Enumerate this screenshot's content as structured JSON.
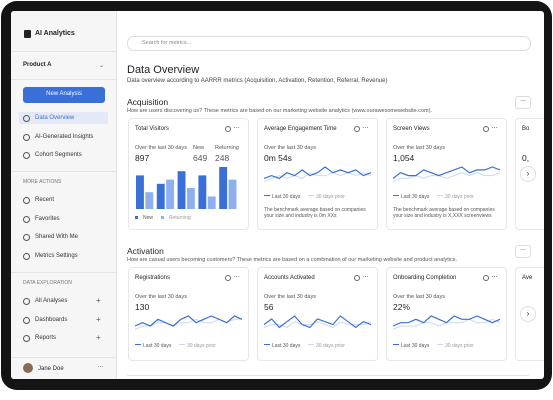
{
  "sidebar": {
    "brand": "AI Analytics",
    "product": "Product A",
    "new_button": "New Analysis",
    "nav": [
      "Data Overview",
      "AI-Generated Insights",
      "Cohort Segments"
    ],
    "sections": [
      {
        "title": "MORE ACTIONS",
        "items": [
          "Recent",
          "Favorites",
          "Shared With Me",
          "Metrics Settings"
        ]
      },
      {
        "title": "DATA EXPLORATION",
        "items": [
          "All Analyses",
          "Dashboards",
          "Reports"
        ]
      }
    ],
    "user": "Jane Doe"
  },
  "main": {
    "search_placeholder": "Search for metrics...",
    "title": "Data Overview",
    "subtitle": "Data overview according to AARRR metrics (Acquisition, Activation, Retention, Referral, Revenue)",
    "sections": [
      {
        "title": "Acquisition",
        "description": "How are users discovering us? These metrics are based on our marketing website analytics (www.ourawesomewebsite.com).",
        "cards": [
          {
            "title": "Total Visitors",
            "period": "Over the last 30 days",
            "stats": [
              {
                "value": "897"
              },
              {
                "label": "New",
                "value": "649"
              },
              {
                "label": "Returning",
                "value": "248"
              }
            ],
            "chart": {
              "type": "bar",
              "series": [
                {
                  "name": "New",
                  "color": "#3b6fd8",
                  "values": [
                    8,
                    6,
                    9,
                    8,
                    10
                  ]
                },
                {
                  "name": "Returning",
                  "color": "#8fb0ee",
                  "values": [
                    4,
                    7,
                    5,
                    3,
                    7
                  ]
                }
              ]
            }
          },
          {
            "title": "Average Engagement Time",
            "period": "Over the last 30 days",
            "stats": [
              {
                "value": "0m 54s"
              }
            ],
            "chart": {
              "type": "line",
              "series": [
                {
                  "name": "Last 30 days",
                  "color": "#3b6fd8",
                  "values": [
                    3,
                    4,
                    3,
                    5,
                    4,
                    6,
                    4,
                    5,
                    7,
                    5,
                    6,
                    5,
                    6,
                    4,
                    5
                  ]
                },
                {
                  "name": "30 days prior",
                  "color": "#c9d8f6",
                  "values": [
                    2,
                    3,
                    4,
                    3,
                    4,
                    3,
                    5,
                    4,
                    4,
                    5,
                    4,
                    5,
                    4,
                    5,
                    4
                  ]
                }
              ]
            },
            "note": "The benchmark average based on companies your size and industry is 0m XXs"
          },
          {
            "title": "Screen Views",
            "period": "Over the last 30 days",
            "stats": [
              {
                "value": "1,054"
              }
            ],
            "chart": {
              "type": "line",
              "series": [
                {
                  "name": "Last 30 days",
                  "color": "#3b6fd8",
                  "values": [
                    3,
                    5,
                    4,
                    4,
                    6,
                    5,
                    4,
                    5,
                    6,
                    7,
                    5,
                    6,
                    6,
                    7,
                    6
                  ]
                },
                {
                  "name": "30 days prior",
                  "color": "#c9d8f6",
                  "values": [
                    2,
                    3,
                    3,
                    4,
                    3,
                    4,
                    4,
                    3,
                    4,
                    5,
                    4,
                    5,
                    4,
                    4,
                    5
                  ]
                }
              ]
            },
            "note": "The benchmark average based on companies your size and industry is X,XXX screenviews"
          },
          {
            "title": "Bo",
            "stats": [
              {
                "value": "0,"
              }
            ]
          }
        ]
      },
      {
        "title": "Activation",
        "description": "How are casual users becoming customers? These metrics are based on a combination of our marketing website and product analytics.",
        "cards": [
          {
            "title": "Registrations",
            "period": "Over the last 30 days",
            "stats": [
              {
                "value": "130"
              }
            ],
            "chart": {
              "type": "line",
              "series": [
                {
                  "name": "Last 30 days",
                  "color": "#3b6fd8",
                  "values": [
                    3,
                    4,
                    3,
                    5,
                    4,
                    3,
                    5,
                    6,
                    4,
                    5,
                    6,
                    5,
                    4,
                    6,
                    5
                  ]
                },
                {
                  "name": "30 days prior",
                  "color": "#c9d8f6",
                  "values": [
                    2,
                    3,
                    3,
                    4,
                    4,
                    3,
                    4,
                    4,
                    5,
                    4,
                    4,
                    5,
                    4,
                    5,
                    5
                  ]
                }
              ]
            }
          },
          {
            "title": "Accounts Activated",
            "period": "Over the last 30 days",
            "stats": [
              {
                "value": "56"
              }
            ],
            "chart": {
              "type": "line",
              "series": [
                {
                  "name": "Last 30 days",
                  "color": "#3b6fd8",
                  "values": [
                    4,
                    6,
                    3,
                    5,
                    7,
                    4,
                    3,
                    6,
                    5,
                    4,
                    7,
                    5,
                    3,
                    5,
                    4
                  ]
                },
                {
                  "name": "30 days prior",
                  "color": "#c9d8f6",
                  "values": [
                    3,
                    4,
                    4,
                    3,
                    5,
                    4,
                    4,
                    5,
                    4,
                    3,
                    5,
                    4,
                    4,
                    4,
                    5
                  ]
                }
              ]
            }
          },
          {
            "title": "Onboarding Completion",
            "period": "Over the last 30 days",
            "stats": [
              {
                "value": "22%"
              }
            ],
            "chart": {
              "type": "line",
              "series": [
                {
                  "name": "Last 30 days",
                  "color": "#3b6fd8",
                  "values": [
                    3,
                    4,
                    4,
                    5,
                    4,
                    6,
                    5,
                    4,
                    6,
                    5,
                    5,
                    6,
                    5,
                    4,
                    5
                  ]
                },
                {
                  "name": "30 days prior",
                  "color": "#c9d8f6",
                  "values": [
                    2,
                    3,
                    3,
                    3,
                    4,
                    4,
                    3,
                    4,
                    4,
                    4,
                    5,
                    4,
                    4,
                    5,
                    4
                  ]
                }
              ]
            }
          },
          {
            "title": "Ave"
          }
        ]
      }
    ]
  }
}
